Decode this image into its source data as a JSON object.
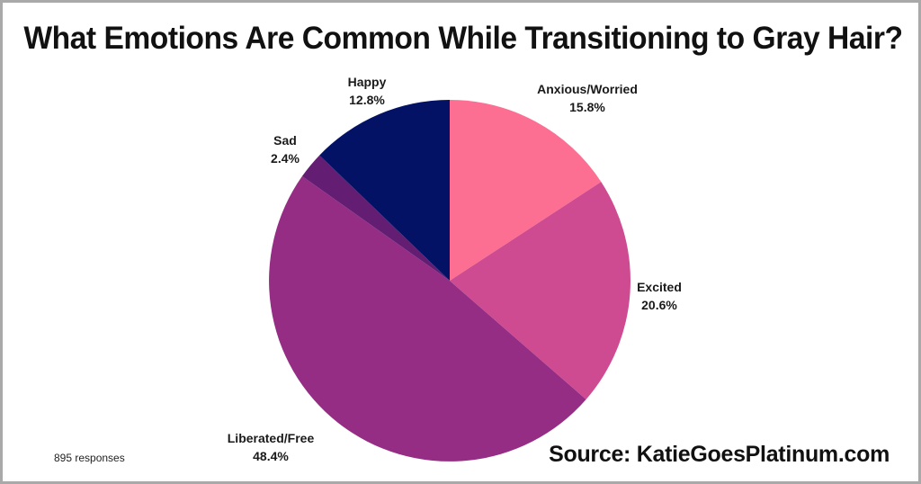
{
  "title": "What Emotions Are Common While Transitioning to Gray Hair?",
  "footnote": "895 responses",
  "source": "Source: KatieGoesPlatinum.com",
  "chart_data": {
    "type": "pie",
    "title": "What Emotions Are Common While Transitioning to Gray Hair?",
    "unit": "%",
    "start_angle_deg": 0,
    "direction": "clockwise",
    "slices": [
      {
        "label": "Anxious/Worried",
        "value": 15.8,
        "value_label": "15.8%",
        "color": "#fc6f93"
      },
      {
        "label": "Excited",
        "value": 20.6,
        "value_label": "20.6%",
        "color": "#cf4b91"
      },
      {
        "label": "Liberated/Free",
        "value": 48.4,
        "value_label": "48.4%",
        "color": "#952d85"
      },
      {
        "label": "Sad",
        "value": 2.4,
        "value_label": "2.4%",
        "color": "#631d73"
      },
      {
        "label": "Happy",
        "value": 12.8,
        "value_label": "12.8%",
        "color": "#031265"
      }
    ]
  }
}
